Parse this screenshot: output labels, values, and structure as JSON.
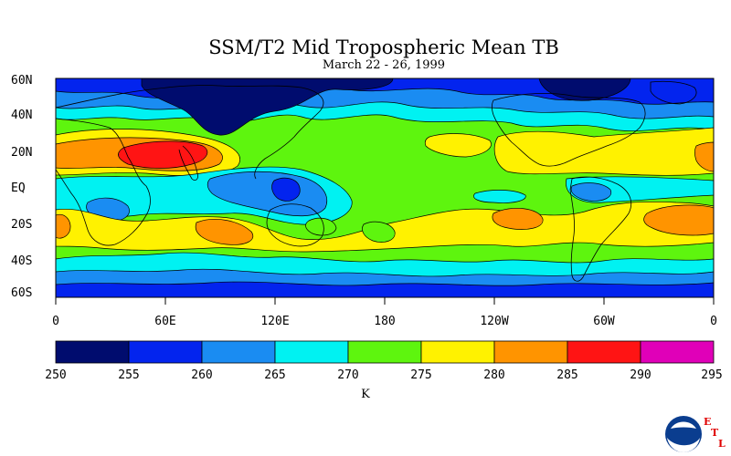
{
  "title": "SSM/T2 Mid Tropospheric Mean TB",
  "subtitle": "March 22 - 26, 1999",
  "map": {
    "lat_labels": [
      "60N",
      "40N",
      "20N",
      "EQ",
      "20S",
      "40S",
      "60S"
    ],
    "lon_labels": [
      "0",
      "60E",
      "120E",
      "180",
      "120W",
      "60W",
      "0"
    ],
    "lat_range": [
      -60,
      60
    ],
    "lon_range": [
      0,
      360
    ]
  },
  "colorbar": {
    "levels": [
      "250",
      "255",
      "260",
      "265",
      "270",
      "275",
      "280",
      "285",
      "290",
      "295"
    ],
    "colors": [
      "#000c6e",
      "#0324ee",
      "#1a8cf2",
      "#00f2f2",
      "#5ef50e",
      "#fff200",
      "#ff9400",
      "#ff1414",
      "#e000b8"
    ],
    "units": "K"
  },
  "logo": {
    "letters": [
      "E",
      "T",
      "L"
    ],
    "badge": "NOAA"
  }
}
